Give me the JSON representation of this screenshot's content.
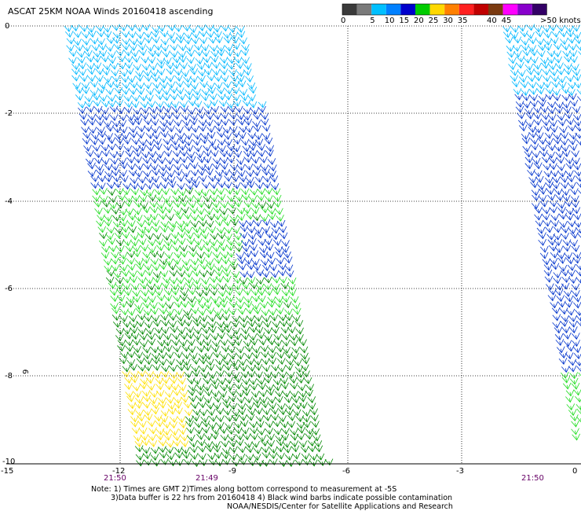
{
  "title": "ASCAT 25KM NOAA Winds 20160418 ascending",
  "legend": {
    "unit_label": ">50 knots",
    "segments": [
      {
        "color": "#3a3a3a",
        "label": "0"
      },
      {
        "color": "#7a7a7a",
        "label": ""
      },
      {
        "color": "#00c0ff",
        "label": "5"
      },
      {
        "color": "#0080ff",
        "label": "10"
      },
      {
        "color": "#0000cc",
        "label": "15"
      },
      {
        "color": "#00cc00",
        "label": "20"
      },
      {
        "color": "#ffd800",
        "label": "25"
      },
      {
        "color": "#ff8000",
        "label": "30"
      },
      {
        "color": "#ff2020",
        "label": "35"
      },
      {
        "color": "#c00000",
        "label": ""
      },
      {
        "color": "#7a3a10",
        "label": "40"
      },
      {
        "color": "#ff00ff",
        "label": "45"
      },
      {
        "color": "#8800cc",
        "label": ""
      },
      {
        "color": "#330066",
        "label": ""
      }
    ]
  },
  "axes": {
    "y_ticks": [
      "0",
      "-2",
      "-4",
      "-6",
      "-8",
      "-10"
    ],
    "x_ticks": [
      "-15",
      "-12",
      "-9",
      "-6",
      "-3",
      "0"
    ],
    "time_labels": [
      "21:50",
      "21:49",
      "21:50"
    ],
    "left_marker": "9"
  },
  "wind_colors": {
    "cyan": "#00b8ff",
    "blue": "#0033cc",
    "green": "#22dd22",
    "dark_green": "#008800",
    "yellow": "#ffe000"
  },
  "notes": {
    "line1": "Note: 1) Times are GMT 2)Times along bottom correspond to measurement at -5S",
    "line2": "3)Data buffer is 22 hrs from 20160418 4) Black wind barbs indicate possible contamination",
    "line3": "NOAA/NESDIS/Center for Satellite Applications and Research"
  }
}
